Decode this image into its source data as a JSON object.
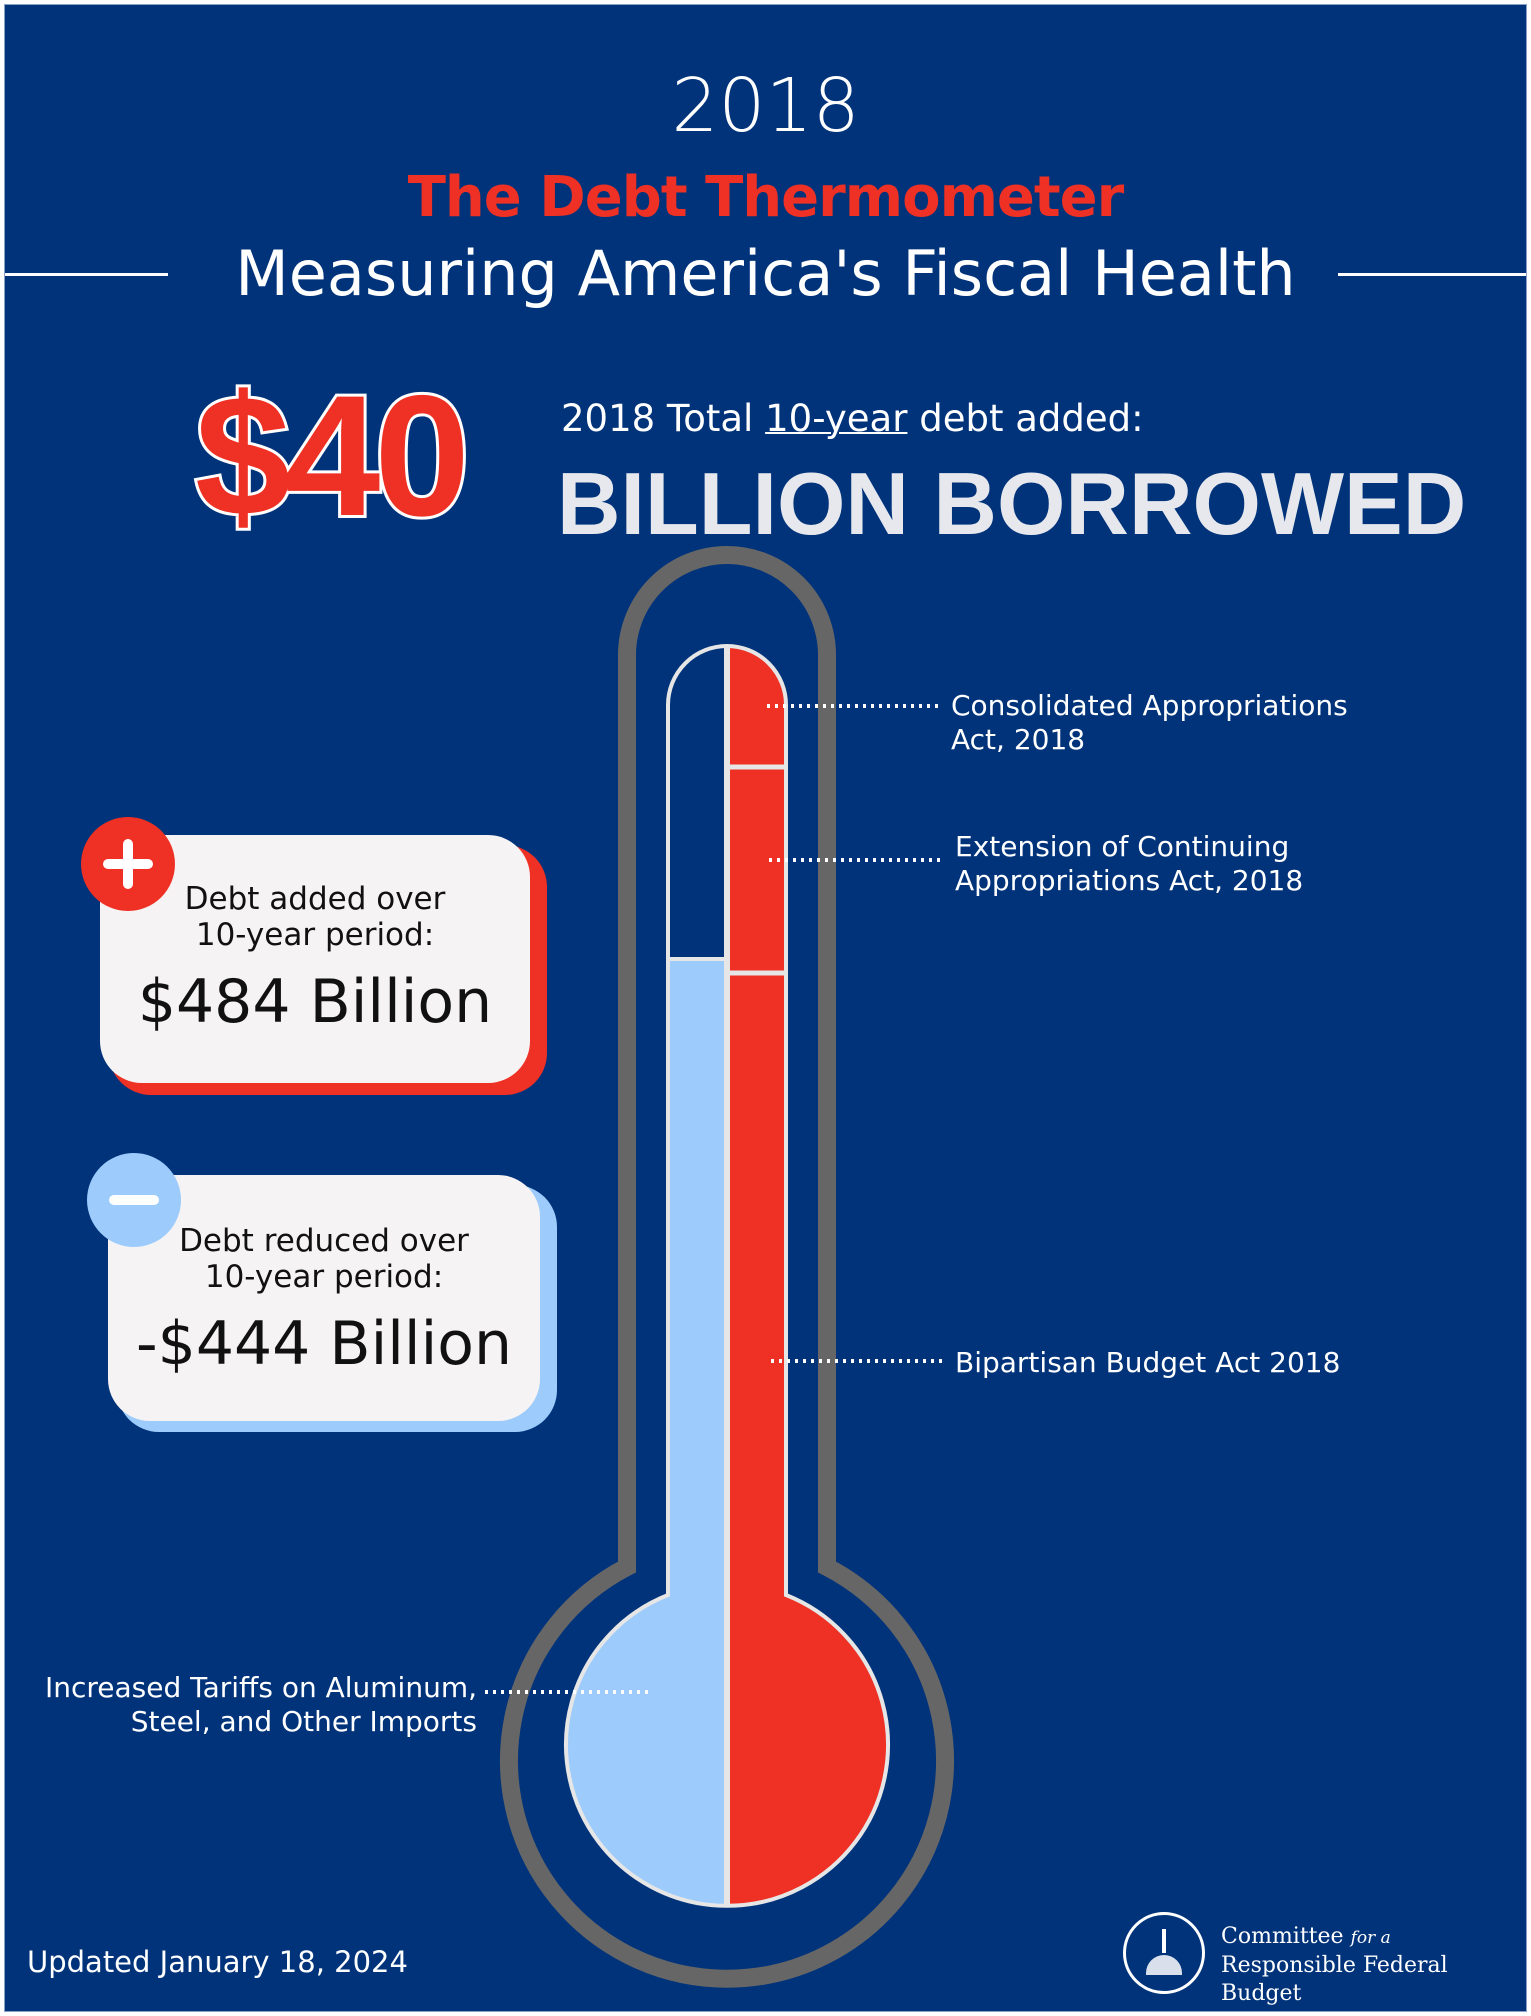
{
  "header": {
    "year": "2018",
    "title": "The Debt Thermometer",
    "subtitle": "Measuring America's Fiscal Health"
  },
  "headline": {
    "amount": "$40",
    "line1_pre": "2018 Total",
    "line1_underlined": "10-year",
    "line1_post": "debt added:",
    "line2": "BILLION BORROWED"
  },
  "cards": {
    "added": {
      "icon": "plus-icon",
      "line1": "Debt added over",
      "line2": "10-year period:",
      "value": "$484 Billion"
    },
    "reduced": {
      "icon": "minus-icon",
      "line1": "Debt reduced over",
      "line2": "10-year period:",
      "value": "-$444 Billion"
    }
  },
  "thermometer_labels": [
    {
      "line1": "Consolidated Appropriations",
      "line2": "Act, 2018"
    },
    {
      "line1": "Extension of Continuing",
      "line2": "Appropriations Act, 2018"
    },
    {
      "line1": "Bipartisan Budget Act 2018",
      "line2": ""
    },
    {
      "line1": "Increased Tariffs on Aluminum,",
      "line2": "Steel, and Other Imports"
    }
  ],
  "footer": {
    "updated": "Updated January 18, 2024"
  },
  "logo": {
    "line1": "Committee",
    "line1_italic": "for a",
    "line2": "Responsible Federal Budget"
  },
  "colors": {
    "background": "#01337a",
    "added": "#ee3124",
    "reduced": "#9dcbfb",
    "outline": "#666666"
  }
}
